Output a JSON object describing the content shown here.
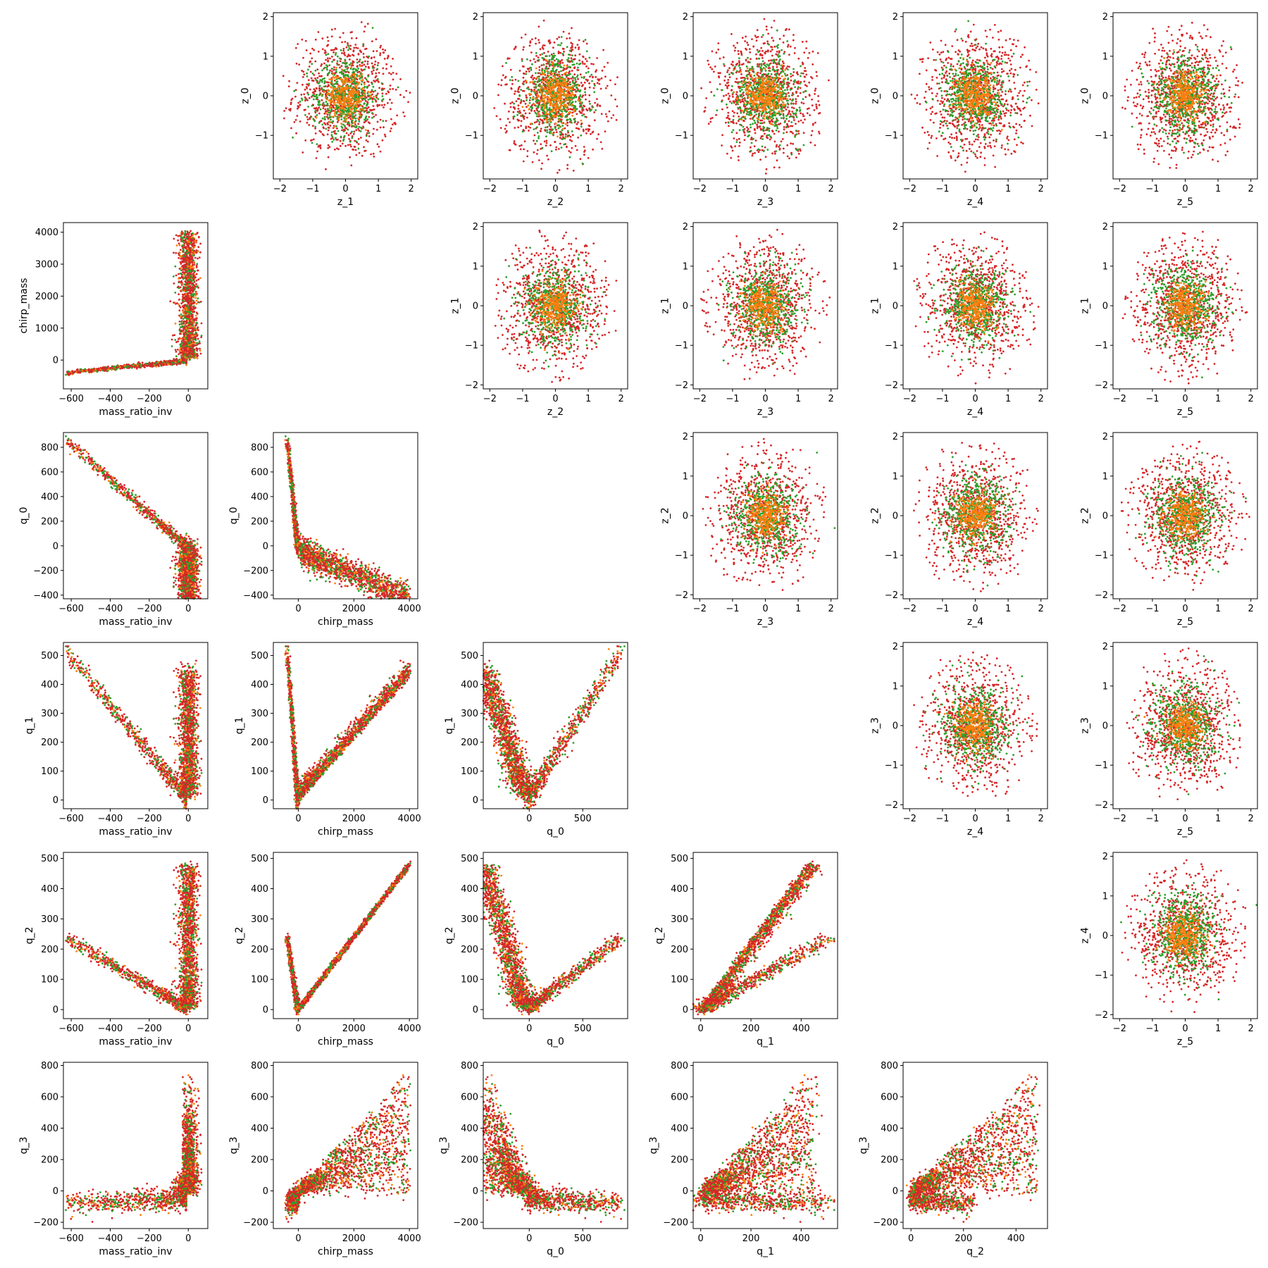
{
  "figure": {
    "variables": [
      "z_0",
      "z_1",
      "z_2",
      "z_3",
      "z_4",
      "z_5"
    ],
    "lower_x_labels": [
      "mass_ratio_inv",
      "chirp_mass",
      "q_0",
      "q_1",
      "q_2"
    ],
    "lower_y_labels": [
      "chirp_mass",
      "q_0",
      "q_1",
      "q_2",
      "q_3"
    ],
    "colors": {
      "outer": "#d62728",
      "middle": "#2ca02c",
      "inner": "#ff7f0e",
      "axes": "#000000",
      "background": "#ffffff"
    }
  },
  "chart_data": {
    "type": "scatter",
    "layout": "pair-plot grid 6x6; upper triangle z_i vs z_j, lower triangle physical parameters, diagonal empty",
    "series_colors": [
      "#d62728",
      "#2ca02c",
      "#ff7f0e"
    ],
    "upper_panels": {
      "xlim": [
        -2.2,
        2.2
      ],
      "ylim": [
        -2.1,
        2.1
      ],
      "xticks": [
        -2,
        -1,
        0,
        1,
        2
      ],
      "yticks_row0": [
        -1,
        0,
        1,
        2
      ],
      "yticks": [
        -2,
        -1,
        0,
        1,
        2
      ],
      "distribution": "isotropic 2D gaussian clouds centred at (0,0); outer (red) sd~0.8, middle (green) sd~0.5, inner (orange) sd~0.3"
    },
    "lower_panels": [
      {
        "x": "mass_ratio_inv",
        "y": "chirp_mass",
        "xlim": [
          -640,
          100
        ],
        "ylim": [
          -900,
          4300
        ],
        "xticks": [
          -600,
          -400,
          -200,
          0
        ],
        "yticks": [
          0,
          1000,
          2000,
          3000,
          4000
        ]
      },
      {
        "x": "mass_ratio_inv",
        "y": "q_0",
        "xlim": [
          -640,
          100
        ],
        "ylim": [
          -430,
          920
        ],
        "xticks": [
          -600,
          -400,
          -200,
          0
        ],
        "yticks": [
          -400,
          -200,
          0,
          200,
          400,
          600,
          800
        ]
      },
      {
        "x": "chirp_mass",
        "y": "q_0",
        "xlim": [
          -900,
          4300
        ],
        "ylim": [
          -430,
          920
        ],
        "xticks": [
          0,
          2000,
          4000
        ],
        "yticks": [
          -400,
          -200,
          0,
          200,
          400,
          600,
          800
        ]
      },
      {
        "x": "mass_ratio_inv",
        "y": "q_1",
        "xlim": [
          -640,
          100
        ],
        "ylim": [
          -30,
          545
        ],
        "xticks": [
          -600,
          -400,
          -200,
          0
        ],
        "yticks": [
          0,
          100,
          200,
          300,
          400,
          500
        ]
      },
      {
        "x": "chirp_mass",
        "y": "q_1",
        "xlim": [
          -900,
          4300
        ],
        "ylim": [
          -30,
          545
        ],
        "xticks": [
          0,
          2000,
          4000
        ],
        "yticks": [
          0,
          100,
          200,
          300,
          400,
          500
        ]
      },
      {
        "x": "q_0",
        "y": "q_1",
        "xlim": [
          -430,
          920
        ],
        "ylim": [
          -30,
          545
        ],
        "xticks": [
          0,
          500
        ],
        "yticks": [
          0,
          100,
          200,
          300,
          400,
          500
        ]
      },
      {
        "x": "mass_ratio_inv",
        "y": "q_2",
        "xlim": [
          -640,
          100
        ],
        "ylim": [
          -30,
          520
        ],
        "xticks": [
          -600,
          -400,
          -200,
          0
        ],
        "yticks": [
          0,
          100,
          200,
          300,
          400,
          500
        ]
      },
      {
        "x": "chirp_mass",
        "y": "q_2",
        "xlim": [
          -900,
          4300
        ],
        "ylim": [
          -30,
          520
        ],
        "xticks": [
          0,
          2000,
          4000
        ],
        "yticks": [
          0,
          100,
          200,
          300,
          400,
          500
        ]
      },
      {
        "x": "q_0",
        "y": "q_2",
        "xlim": [
          -430,
          920
        ],
        "ylim": [
          -30,
          520
        ],
        "xticks": [
          0,
          500
        ],
        "yticks": [
          0,
          100,
          200,
          300,
          400,
          500
        ]
      },
      {
        "x": "q_1",
        "y": "q_2",
        "xlim": [
          -30,
          545
        ],
        "ylim": [
          -30,
          520
        ],
        "xticks": [
          0,
          200,
          400
        ],
        "yticks": [
          0,
          100,
          200,
          300,
          400,
          500
        ]
      },
      {
        "x": "mass_ratio_inv",
        "y": "q_3",
        "xlim": [
          -640,
          100
        ],
        "ylim": [
          -240,
          820
        ],
        "xticks": [
          -600,
          -400,
          -200,
          0
        ],
        "yticks": [
          -200,
          0,
          200,
          400,
          600,
          800
        ]
      },
      {
        "x": "chirp_mass",
        "y": "q_3",
        "xlim": [
          -900,
          4300
        ],
        "ylim": [
          -240,
          820
        ],
        "xticks": [
          0,
          2000,
          4000
        ],
        "yticks": [
          -200,
          0,
          200,
          400,
          600,
          800
        ]
      },
      {
        "x": "q_0",
        "y": "q_3",
        "xlim": [
          -430,
          920
        ],
        "ylim": [
          -240,
          820
        ],
        "xticks": [
          0,
          500
        ],
        "yticks": [
          -200,
          0,
          200,
          400,
          600,
          800
        ]
      },
      {
        "x": "q_1",
        "y": "q_3",
        "xlim": [
          -30,
          545
        ],
        "ylim": [
          -240,
          820
        ],
        "xticks": [
          0,
          200,
          400
        ],
        "yticks": [
          -200,
          0,
          200,
          400,
          600,
          800
        ]
      },
      {
        "x": "q_2",
        "y": "q_3",
        "xlim": [
          -30,
          520
        ],
        "ylim": [
          -240,
          820
        ],
        "xticks": [
          0,
          200,
          400
        ],
        "yticks": [
          -200,
          0,
          200,
          400,
          600,
          800
        ]
      }
    ]
  }
}
